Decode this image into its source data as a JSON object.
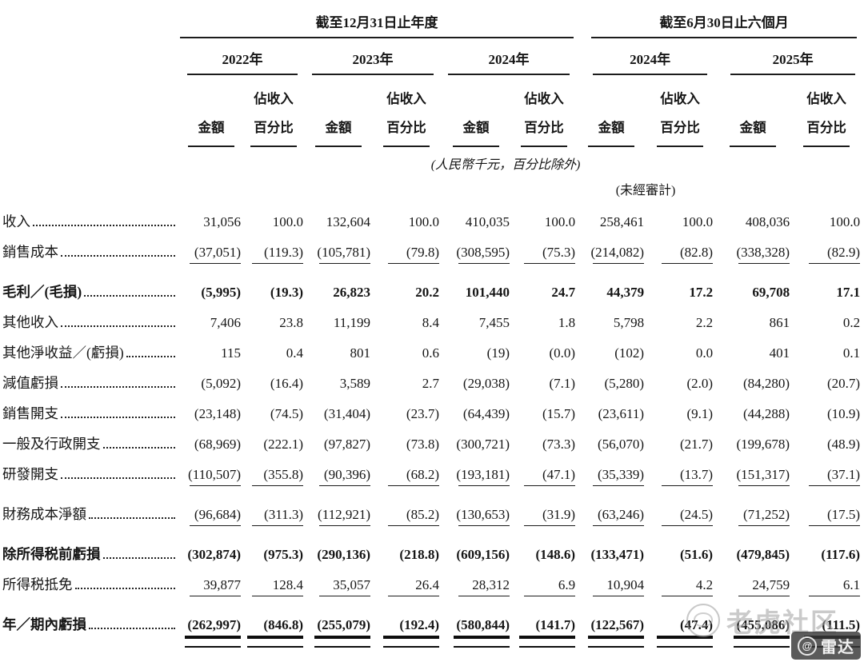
{
  "header": {
    "annual_group": "截至12月31日止年度",
    "interim_group": "截至6月30日止六個月",
    "years": [
      "2022年",
      "2023年",
      "2024年",
      "2024年",
      "2025年"
    ],
    "amount_label": "金額",
    "pct_label_top": "佔收入",
    "pct_label_bottom": "百分比",
    "unit_note": "(人民幣千元，百分比除外)",
    "unaudited_note": "(未經審計)"
  },
  "rows": [
    {
      "label": "收入",
      "values": [
        "31,056",
        "100.0",
        "132,604",
        "100.0",
        "410,035",
        "100.0",
        "258,461",
        "100.0",
        "408,036",
        "100.0"
      ]
    },
    {
      "label": "銷售成本",
      "values": [
        "(37,051)",
        "(119.3)",
        "(105,781)",
        "(79.8)",
        "(308,595)",
        "(75.3)",
        "(214,082)",
        "(82.8)",
        "(338,328)",
        "(82.9)"
      ],
      "rule_after": true
    },
    {
      "label": "毛利／(毛損)",
      "bold": true,
      "values": [
        "(5,995)",
        "(19.3)",
        "26,823",
        "20.2",
        "101,440",
        "24.7",
        "44,379",
        "17.2",
        "69,708",
        "17.1"
      ]
    },
    {
      "label": "其他收入",
      "values": [
        "7,406",
        "23.8",
        "11,199",
        "8.4",
        "7,455",
        "1.8",
        "5,798",
        "2.2",
        "861",
        "0.2"
      ]
    },
    {
      "label": "其他淨收益／(虧損)",
      "values": [
        "115",
        "0.4",
        "801",
        "0.6",
        "(19)",
        "(0.0)",
        "(102)",
        "0.0",
        "401",
        "0.1"
      ]
    },
    {
      "label": "減值虧損",
      "values": [
        "(5,092)",
        "(16.4)",
        "3,589",
        "2.7",
        "(29,038)",
        "(7.1)",
        "(5,280)",
        "(2.0)",
        "(84,280)",
        "(20.7)"
      ]
    },
    {
      "label": "銷售開支",
      "values": [
        "(23,148)",
        "(74.5)",
        "(31,404)",
        "(23.7)",
        "(64,439)",
        "(15.7)",
        "(23,611)",
        "(9.1)",
        "(44,288)",
        "(10.9)"
      ]
    },
    {
      "label": "一般及行政開支",
      "values": [
        "(68,969)",
        "(222.1)",
        "(97,827)",
        "(73.8)",
        "(300,721)",
        "(73.3)",
        "(56,070)",
        "(21.7)",
        "(199,678)",
        "(48.9)"
      ]
    },
    {
      "label": "研發開支",
      "values": [
        "(110,507)",
        "(355.8)",
        "(90,396)",
        "(68.2)",
        "(193,181)",
        "(47.1)",
        "(35,339)",
        "(13.7)",
        "(151,317)",
        "(37.1)"
      ],
      "rule_after": true
    },
    {
      "label": "財務成本淨額",
      "values": [
        "(96,684)",
        "(311.3)",
        "(112,921)",
        "(85.2)",
        "(130,653)",
        "(31.9)",
        "(63,246)",
        "(24.5)",
        "(71,252)",
        "(17.5)"
      ],
      "rule_after": true
    },
    {
      "label": "除所得税前虧損",
      "bold": true,
      "values": [
        "(302,874)",
        "(975.3)",
        "(290,136)",
        "(218.8)",
        "(609,156)",
        "(148.6)",
        "(133,471)",
        "(51.6)",
        "(479,845)",
        "(117.6)"
      ]
    },
    {
      "label": "所得税抵免",
      "values": [
        "39,877",
        "128.4",
        "35,057",
        "26.4",
        "28,312",
        "6.9",
        "10,904",
        "4.2",
        "24,759",
        "6.1"
      ],
      "rule_after": true
    },
    {
      "label": "年／期內虧損",
      "bold": true,
      "values": [
        "(262,997)",
        "(846.8)",
        "(255,079)",
        "(192.4)",
        "(580,844)",
        "(141.7)",
        "(122,567)",
        "(47.4)",
        "(455,086)",
        "(111.5)"
      ],
      "double_rule_after": true
    }
  ],
  "watermark": {
    "community": "老虎社区",
    "badge_at": "@",
    "badge": "雷达"
  }
}
